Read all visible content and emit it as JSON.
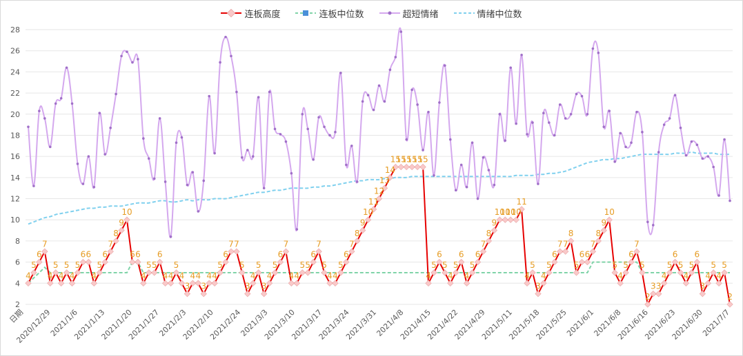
{
  "chart_data": {
    "type": "line",
    "legend_position": "top",
    "ylim": [
      2,
      28
    ],
    "y_ticks": [
      "2",
      "4",
      "6",
      "8",
      "10",
      "12",
      "14",
      "16",
      "18",
      "20",
      "22",
      "24",
      "26",
      "28"
    ],
    "x_axis_first_label": "日期",
    "x_ticks": [
      "2020/12/29",
      "2021/1/6",
      "2021/1/13",
      "2021/1/20",
      "2021/1/27",
      "2021/2/3",
      "2021/2/10",
      "2021/2/24",
      "2021/3/3",
      "2021/3/10",
      "2021/3/17",
      "2021/3/24",
      "2021/3/31",
      "2021/4/8",
      "2021/4/15",
      "2021/4/22",
      "2021/4/29",
      "2021/5/11",
      "2021/5/18",
      "2021/5/25",
      "2021/6/1",
      "2021/6/8",
      "2021/6/16",
      "2021/6/23",
      "2021/6/30",
      "2021/7/7"
    ],
    "colors": {
      "lianban_height": "#e60000",
      "lianban_marker_fill": "#f9c9c9",
      "lianban_median": "#7fd3a8",
      "lianban_median_marker": "#4a90d9",
      "chaoduan": "#d4a8ee",
      "chaoduan_marker": "#a070c8",
      "qingxu_median": "#7fd0ee",
      "data_label": "#e69c24",
      "grid": "#e6e6e6"
    },
    "series": [
      {
        "name": "连板高度",
        "values": [
          4,
          5,
          6,
          7,
          4,
          5,
          4,
          5,
          4,
          5,
          6,
          6,
          4,
          5,
          6,
          7,
          8,
          9,
          10,
          6,
          6,
          4,
          5,
          5,
          6,
          4,
          4,
          5,
          4,
          3,
          4,
          4,
          3,
          4,
          4,
          5,
          6,
          7,
          7,
          5,
          3,
          4,
          5,
          3,
          4,
          5,
          6,
          7,
          4,
          4,
          5,
          5,
          6,
          7,
          5,
          4,
          4,
          5,
          6,
          7,
          8,
          9,
          10,
          11,
          12,
          13,
          14,
          15,
          15,
          15,
          15,
          15,
          15,
          4,
          5,
          6,
          5,
          4,
          5,
          6,
          4,
          5,
          6,
          7,
          8,
          9,
          10,
          10,
          10,
          10,
          11,
          4,
          5,
          3,
          4,
          5,
          6,
          7,
          7,
          8,
          5,
          6,
          6,
          7,
          8,
          9,
          10,
          5,
          4,
          5,
          6,
          7,
          5,
          2,
          3,
          3,
          4,
          5,
          6,
          5,
          4,
          5,
          6,
          3,
          4,
          5,
          4,
          5,
          2
        ]
      },
      {
        "name": "连板中位数",
        "values": [
          4,
          4.5,
          5,
          5.5,
          5,
          5,
          5,
          5,
          5,
          5,
          5,
          5,
          5,
          5,
          5,
          5,
          5,
          5,
          5,
          6,
          6,
          5,
          5,
          5,
          5,
          5,
          5,
          5,
          5,
          5,
          5,
          5,
          5,
          5,
          5,
          5,
          5,
          5,
          5,
          5,
          5,
          5,
          5,
          5,
          5,
          5,
          5,
          5,
          5,
          5,
          5,
          5,
          5,
          5,
          5,
          5,
          5,
          5,
          5,
          5,
          5,
          5,
          5,
          5,
          5,
          5,
          5,
          5,
          5,
          5,
          5,
          5,
          5,
          5,
          5,
          5,
          5,
          5,
          5,
          5,
          5,
          5,
          5,
          5,
          5,
          5,
          5,
          5,
          5,
          5,
          5,
          5,
          5,
          5,
          5,
          5,
          5,
          5,
          5,
          5,
          5,
          5,
          5,
          6,
          6,
          6,
          6,
          6,
          6,
          6,
          6,
          6,
          5,
          5,
          5,
          5,
          5,
          5,
          5,
          5,
          5,
          5,
          5,
          5,
          5,
          5,
          5,
          5,
          5
        ]
      },
      {
        "name": "超短情绪",
        "values": [
          18.8,
          13.2,
          20.3,
          19.6,
          16.9,
          21,
          21.5,
          24.4,
          21,
          15.3,
          13.4,
          16,
          13.1,
          20.1,
          16.2,
          18.7,
          21.9,
          25.5,
          25.9,
          24.9,
          25.2,
          17.7,
          15.8,
          13.9,
          19.6,
          13.6,
          8.4,
          17.3,
          17.8,
          13.3,
          14.5,
          10.8,
          13.7,
          21.7,
          16.3,
          24.9,
          27.3,
          25.5,
          22.1,
          15.9,
          16.6,
          16,
          21.6,
          13,
          22.1,
          18.6,
          18.1,
          17.4,
          14.4,
          9.1,
          20,
          18.6,
          15.7,
          19.7,
          18.8,
          18,
          18.3,
          23.9,
          15.2,
          17,
          13.6,
          21.2,
          21.8,
          20.4,
          22.7,
          21.2,
          24.2,
          25.4,
          27.8,
          17.6,
          22.3,
          20.9,
          16.6,
          20.2,
          14.2,
          21.1,
          24.6,
          17.6,
          12.8,
          15.2,
          13.1,
          17.3,
          12,
          15.9,
          14.7,
          13.3,
          20,
          17.5,
          24.4,
          19.1,
          25.6,
          18.1,
          19.2,
          13.4,
          20.1,
          19.2,
          18,
          20.9,
          19.6,
          20,
          21.9,
          21.7,
          20,
          26.2,
          25.8,
          18.8,
          20.3,
          15.5,
          18.2,
          16.9,
          17.3,
          20.2,
          18.3,
          9.8,
          9.5,
          16.4,
          19,
          19.6,
          21.8,
          18.7,
          16.1,
          17.4,
          17.1,
          15.8,
          16,
          15,
          12.3,
          17.6,
          11.8
        ]
      },
      {
        "name": "情绪中位数",
        "values": [
          9.6,
          9.8,
          10,
          10.2,
          10.3,
          10.5,
          10.6,
          10.7,
          10.8,
          10.9,
          11,
          11.1,
          11.1,
          11.2,
          11.2,
          11.3,
          11.3,
          11.3,
          11.4,
          11.5,
          11.6,
          11.6,
          11.6,
          11.7,
          11.8,
          11.8,
          11.7,
          11.7,
          11.8,
          11.9,
          11.8,
          11.9,
          11.9,
          11.9,
          12,
          12,
          12,
          12.1,
          12.2,
          12.3,
          12.4,
          12.5,
          12.6,
          12.6,
          12.7,
          12.8,
          12.8,
          12.9,
          13,
          13,
          13,
          13,
          13.1,
          13.1,
          13.2,
          13.2,
          13.3,
          13.4,
          13.5,
          13.6,
          13.7,
          13.7,
          13.8,
          13.8,
          13.8,
          13.9,
          13.9,
          14,
          14,
          14,
          14.1,
          14.1,
          14.1,
          14.1,
          14.1,
          14.1,
          14.1,
          14.1,
          14.1,
          14.1,
          14.1,
          14.1,
          14.1,
          14.1,
          14.1,
          14.1,
          14.1,
          14.1,
          14.1,
          14.2,
          14.2,
          14.2,
          14.2,
          14.3,
          14.3,
          14.4,
          14.4,
          14.5,
          14.6,
          14.8,
          15,
          15.2,
          15.4,
          15.5,
          15.6,
          15.7,
          15.7,
          15.8,
          15.8,
          15.9,
          16,
          16.1,
          16.2,
          16.2,
          16.2,
          16.2,
          16.2,
          16.2,
          16.3,
          16.3,
          16.3,
          16.4,
          16.3,
          16.3,
          16.3,
          16.3,
          16.2,
          16.2,
          16.2
        ]
      }
    ]
  }
}
